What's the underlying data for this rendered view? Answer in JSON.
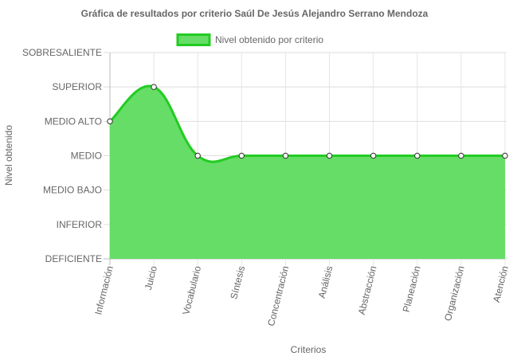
{
  "chart_data": {
    "type": "area",
    "title": "Gráfica de resultados por criterio Saúl De Jesús Alejandro Serrano Mendoza",
    "xlabel": "Criterios",
    "ylabel": "Nivel obtenido",
    "categories": [
      "Información",
      "Juicio",
      "Vocabulario",
      "Síntesis",
      "Concentración",
      "Análisis",
      "Abstracción",
      "Planeación",
      "Organización",
      "Atención"
    ],
    "y_levels": [
      "DEFICIENTE",
      "INFERIOR",
      "MEDIO BAJO",
      "MEDIO",
      "MEDIO ALTO",
      "SUPERIOR",
      "SOBRESALIENTE"
    ],
    "ylim": [
      0,
      6
    ],
    "grid": true,
    "legend_position": "top",
    "series": [
      {
        "name": "Nivel obtenido por criterio",
        "values": [
          4,
          5,
          3,
          3,
          3,
          3,
          3,
          3,
          3,
          3
        ],
        "fill_color": "#66dd66",
        "line_color": "#22cc22"
      }
    ]
  }
}
